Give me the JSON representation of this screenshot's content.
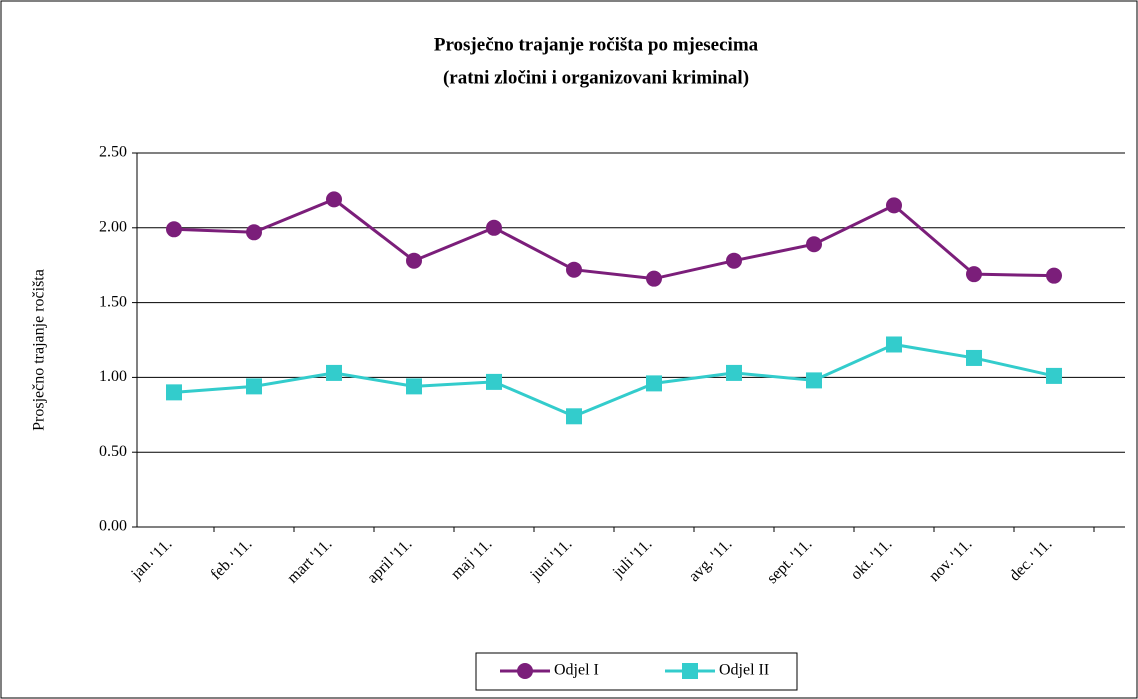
{
  "chart_data": {
    "type": "line",
    "title": "Prosječno trajanje ročišta po mjesecima",
    "subtitle": "(ratni zločini i organizovani kriminal)",
    "y_label": "Prosječno trajanje ročišta",
    "categories": [
      "jan. '11.",
      "feb. '11.",
      "mart '11.",
      "april '11.",
      "maj '11.",
      "juni '11.",
      "juli '11.",
      "avg. '11.",
      "sept. '11.",
      "okt. '11.",
      "nov. '11.",
      "dec. '11."
    ],
    "series": [
      {
        "name": "Odjel I",
        "color": "#7B1E7A",
        "marker": "circle",
        "values": [
          1.99,
          1.97,
          2.19,
          1.78,
          2.0,
          1.72,
          1.66,
          1.78,
          1.89,
          2.15,
          1.69,
          1.68
        ]
      },
      {
        "name": "Odjel II",
        "color": "#33CCCC",
        "marker": "square",
        "values": [
          0.9,
          0.94,
          1.03,
          0.94,
          0.97,
          0.74,
          0.96,
          1.03,
          0.98,
          1.22,
          1.13,
          1.01
        ]
      }
    ],
    "ylim": [
      0,
      2.5
    ],
    "yticks": [
      {
        "value": 0,
        "label": "0.00"
      },
      {
        "value": 0.5,
        "label": "0.50"
      },
      {
        "value": 1,
        "label": "1.00"
      },
      {
        "value": 1.5,
        "label": "1.50"
      },
      {
        "value": 2,
        "label": "2.00"
      },
      {
        "value": 2.5,
        "label": "2.50"
      }
    ],
    "grid": true,
    "legend": "bottom"
  }
}
